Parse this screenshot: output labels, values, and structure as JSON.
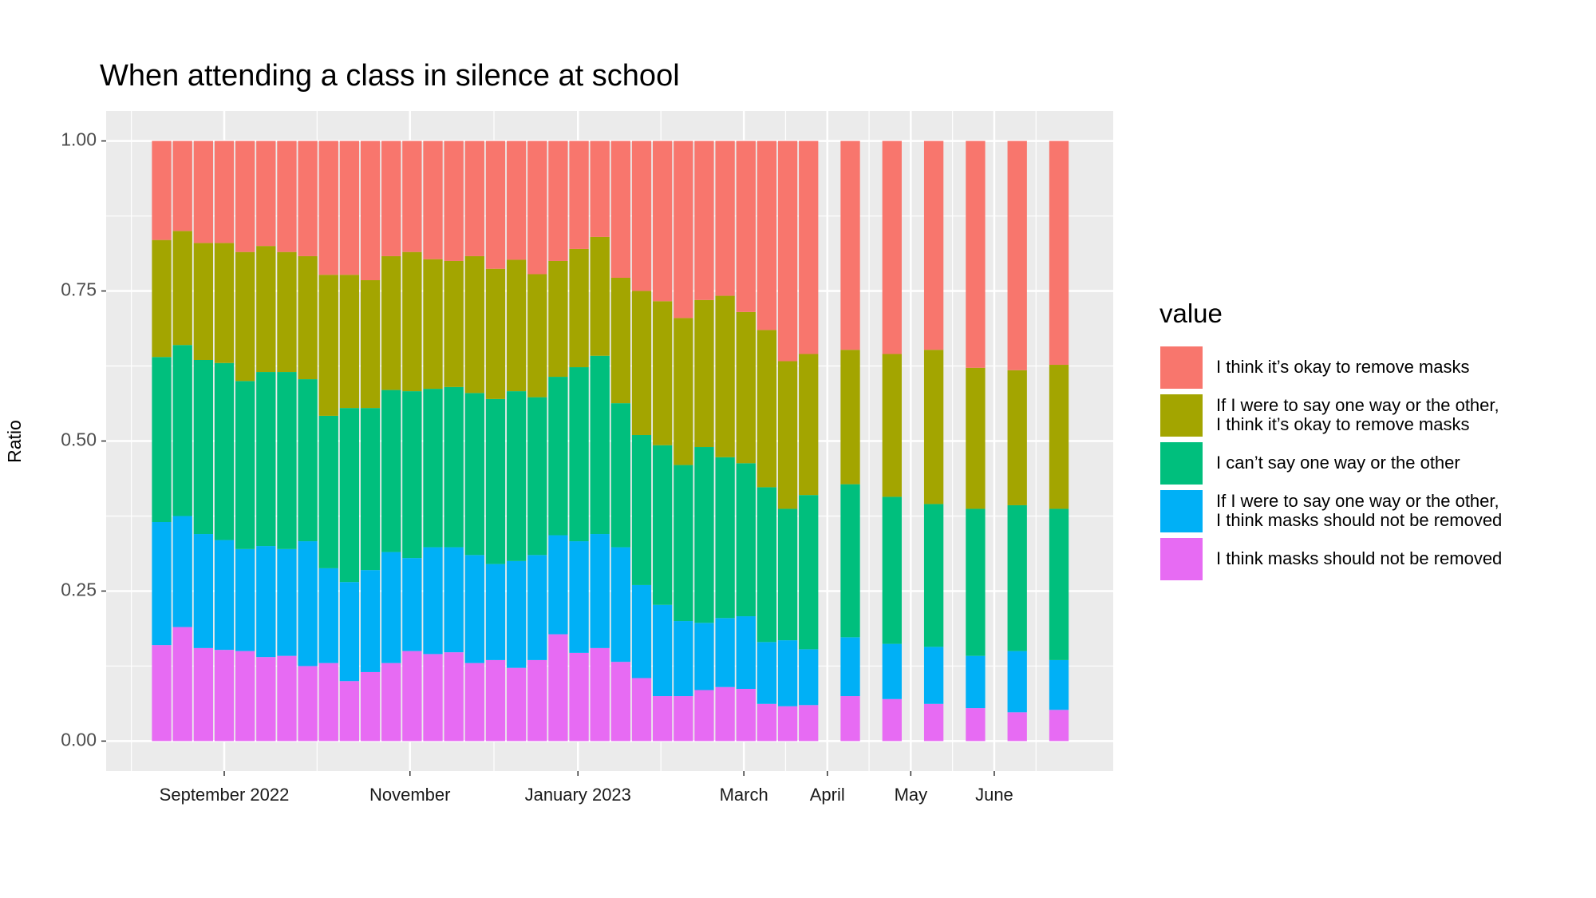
{
  "chart_data": {
    "type": "stacked_bar",
    "title": "When attending a class in silence at school",
    "y_label": "Ratio",
    "legend_title": "value",
    "x": [
      0,
      1,
      2,
      3,
      4,
      5,
      6,
      7,
      8,
      9,
      10,
      11,
      12,
      13,
      14,
      15,
      16,
      17,
      18,
      19,
      20,
      21,
      22,
      23,
      24,
      25,
      26,
      27,
      28,
      29,
      30,
      31,
      33,
      35,
      37,
      39,
      41,
      43
    ],
    "xlim": [
      -2.66,
      45.6
    ],
    "xticks": [
      {
        "value": 3,
        "label": "September 2022"
      },
      {
        "value": 11.9,
        "label": "November"
      },
      {
        "value": 19.95,
        "label": "January 2023"
      },
      {
        "value": 27.9,
        "label": "March"
      },
      {
        "value": 31.9,
        "label": "April"
      },
      {
        "value": 35.9,
        "label": "May"
      },
      {
        "value": 39.9,
        "label": "June"
      }
    ],
    "ylim": [
      -0.05,
      1.05
    ],
    "yticks": [
      {
        "value": 0,
        "label": "0.00"
      },
      {
        "value": 0.25,
        "label": "0.25"
      },
      {
        "value": 0.5,
        "label": "0.50"
      },
      {
        "value": 0.75,
        "label": "0.75"
      },
      {
        "value": 1,
        "label": "1.00"
      }
    ],
    "grid": true,
    "legend": "right",
    "series": [
      {
        "name": "I think it’s okay to remove masks",
        "color": "#F8766D",
        "values": [
          0.165,
          0.15,
          0.17,
          0.17,
          0.185,
          0.175,
          0.185,
          0.192,
          0.223,
          0.223,
          0.232,
          0.192,
          0.185,
          0.197,
          0.2,
          0.192,
          0.213,
          0.198,
          0.222,
          0.2,
          0.18,
          0.16,
          0.228,
          0.25,
          0.267,
          0.295,
          0.265,
          0.258,
          0.285,
          0.315,
          0.367,
          0.355,
          0.348,
          0.355,
          0.348,
          0.378,
          0.382,
          0.373
        ]
      },
      {
        "name": "If I were to say one way or the other,\nI think it’s okay to remove  masks",
        "color": "#A3A500",
        "values": [
          0.195,
          0.19,
          0.195,
          0.2,
          0.215,
          0.21,
          0.2,
          0.205,
          0.235,
          0.222,
          0.213,
          0.223,
          0.232,
          0.216,
          0.21,
          0.228,
          0.217,
          0.219,
          0.205,
          0.193,
          0.197,
          0.198,
          0.209,
          0.24,
          0.24,
          0.245,
          0.245,
          0.269,
          0.252,
          0.262,
          0.246,
          0.235,
          0.224,
          0.238,
          0.257,
          0.235,
          0.225,
          0.24
        ]
      },
      {
        "name": "I can’t say one way or the other",
        "color": "#00BF7D",
        "values": [
          0.275,
          0.285,
          0.29,
          0.295,
          0.28,
          0.29,
          0.295,
          0.27,
          0.254,
          0.29,
          0.27,
          0.27,
          0.278,
          0.264,
          0.267,
          0.27,
          0.275,
          0.283,
          0.263,
          0.264,
          0.29,
          0.297,
          0.24,
          0.25,
          0.266,
          0.26,
          0.293,
          0.268,
          0.255,
          0.258,
          0.219,
          0.257,
          0.255,
          0.245,
          0.238,
          0.245,
          0.243,
          0.252
        ]
      },
      {
        "name": "If I were to say one way or the other,\nI think masks should not be removed",
        "color": "#00B0F6",
        "values": [
          0.205,
          0.185,
          0.19,
          0.183,
          0.17,
          0.185,
          0.178,
          0.208,
          0.158,
          0.165,
          0.17,
          0.185,
          0.155,
          0.178,
          0.175,
          0.18,
          0.16,
          0.178,
          0.175,
          0.165,
          0.186,
          0.19,
          0.191,
          0.155,
          0.152,
          0.125,
          0.112,
          0.115,
          0.121,
          0.103,
          0.11,
          0.093,
          0.098,
          0.092,
          0.095,
          0.087,
          0.102,
          0.083
        ]
      },
      {
        "name": "I think masks should not be removed",
        "color": "#E76BF3",
        "values": [
          0.16,
          0.19,
          0.155,
          0.152,
          0.15,
          0.14,
          0.142,
          0.125,
          0.13,
          0.1,
          0.115,
          0.13,
          0.15,
          0.145,
          0.148,
          0.13,
          0.135,
          0.122,
          0.135,
          0.178,
          0.147,
          0.155,
          0.132,
          0.105,
          0.075,
          0.075,
          0.085,
          0.09,
          0.087,
          0.062,
          0.058,
          0.06,
          0.075,
          0.07,
          0.062,
          0.055,
          0.048,
          0.052
        ]
      }
    ]
  }
}
